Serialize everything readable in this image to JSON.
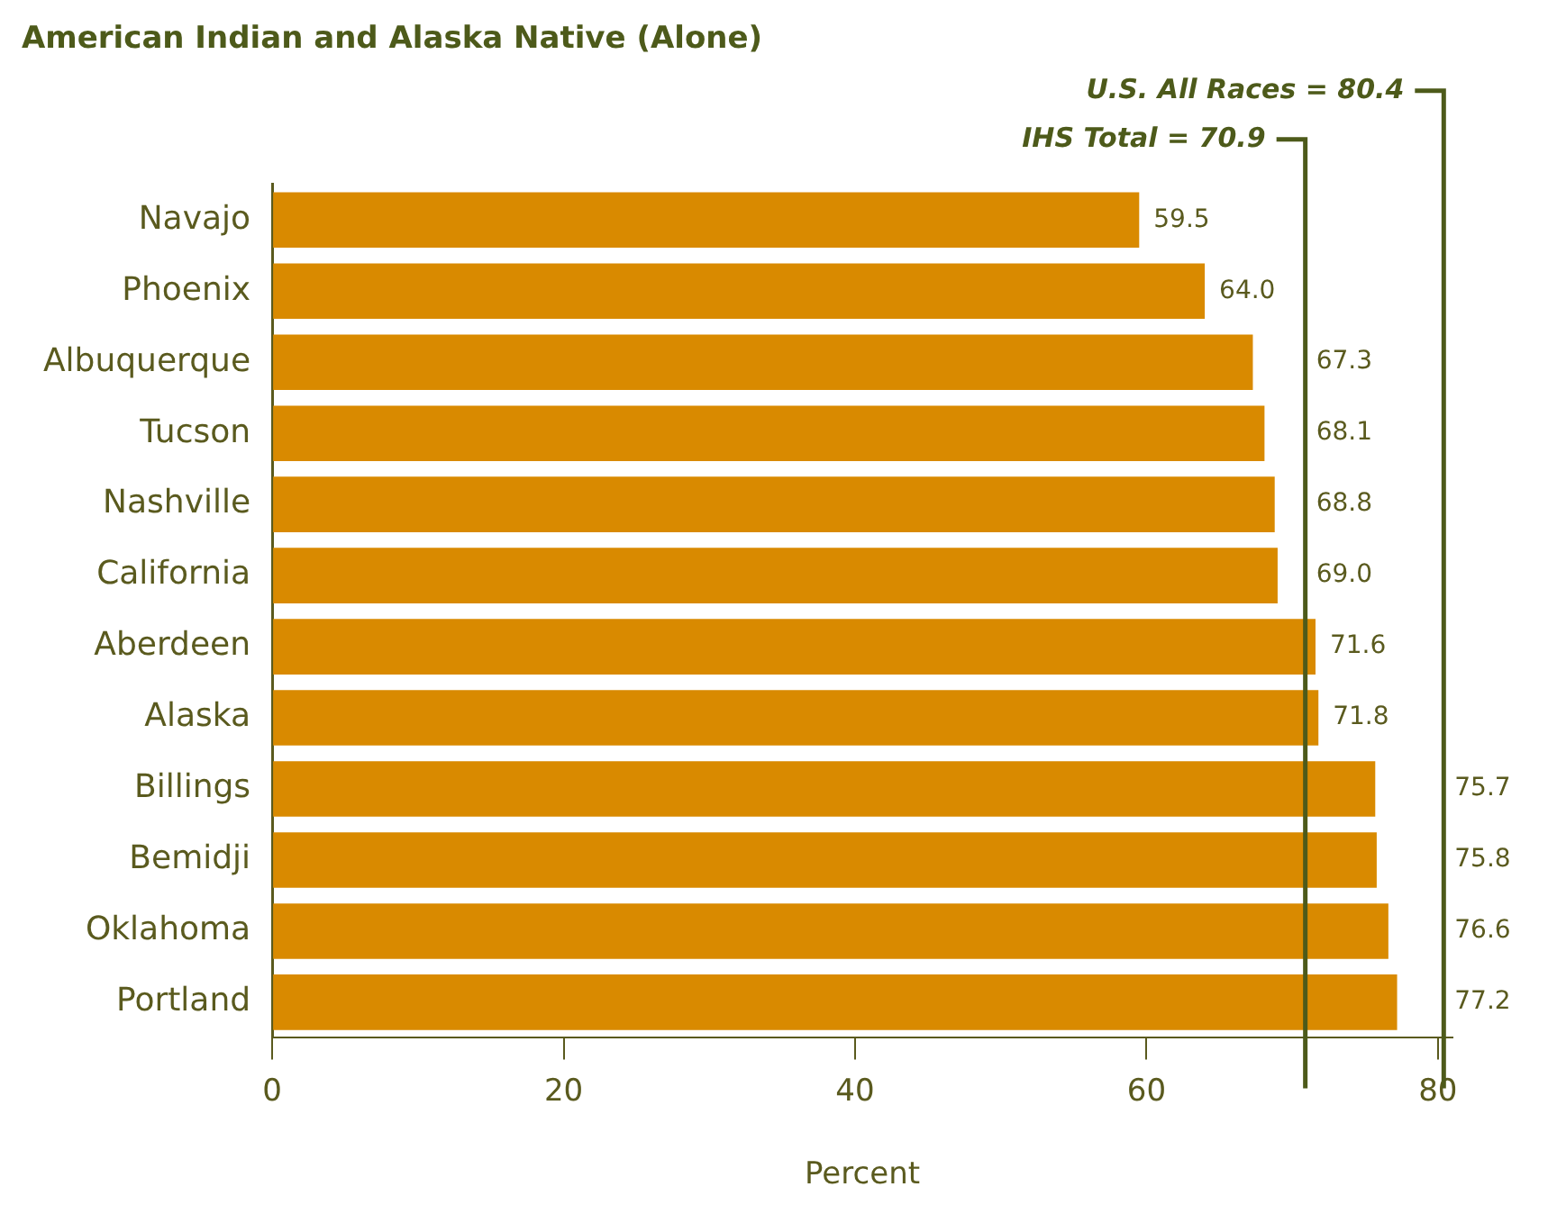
{
  "chart_data": {
    "type": "bar",
    "orientation": "horizontal",
    "title": "American Indian and Alaska Native (Alone)",
    "xlabel": "Percent",
    "categories": [
      "Navajo",
      "Phoenix",
      "Albuquerque",
      "Tucson",
      "Nashville",
      "California",
      "Aberdeen",
      "Alaska",
      "Billings",
      "Bemidji",
      "Oklahoma",
      "Portland"
    ],
    "values": [
      59.5,
      64.0,
      67.3,
      68.1,
      68.8,
      69.0,
      71.6,
      71.8,
      75.7,
      75.8,
      76.6,
      77.2
    ],
    "color": "#d98a00",
    "xlim": [
      0,
      81
    ],
    "xticks": [
      0,
      20,
      40,
      60,
      80
    ],
    "grid": false,
    "legend": false,
    "value_labels": [
      "59.5",
      "64.0",
      "67.3",
      "68.1",
      "68.8",
      "69.0",
      "71.6",
      "71.8",
      "75.7",
      "75.8",
      "76.6",
      "77.2"
    ],
    "ref_lines": [
      {
        "axis": "x",
        "value": 80.4,
        "label": "U.S. All Races = 80.4",
        "color": "#4d5a1a"
      },
      {
        "axis": "x",
        "value": 70.9,
        "label": "IHS Total = 70.9",
        "color": "#4d5a1a"
      }
    ]
  }
}
